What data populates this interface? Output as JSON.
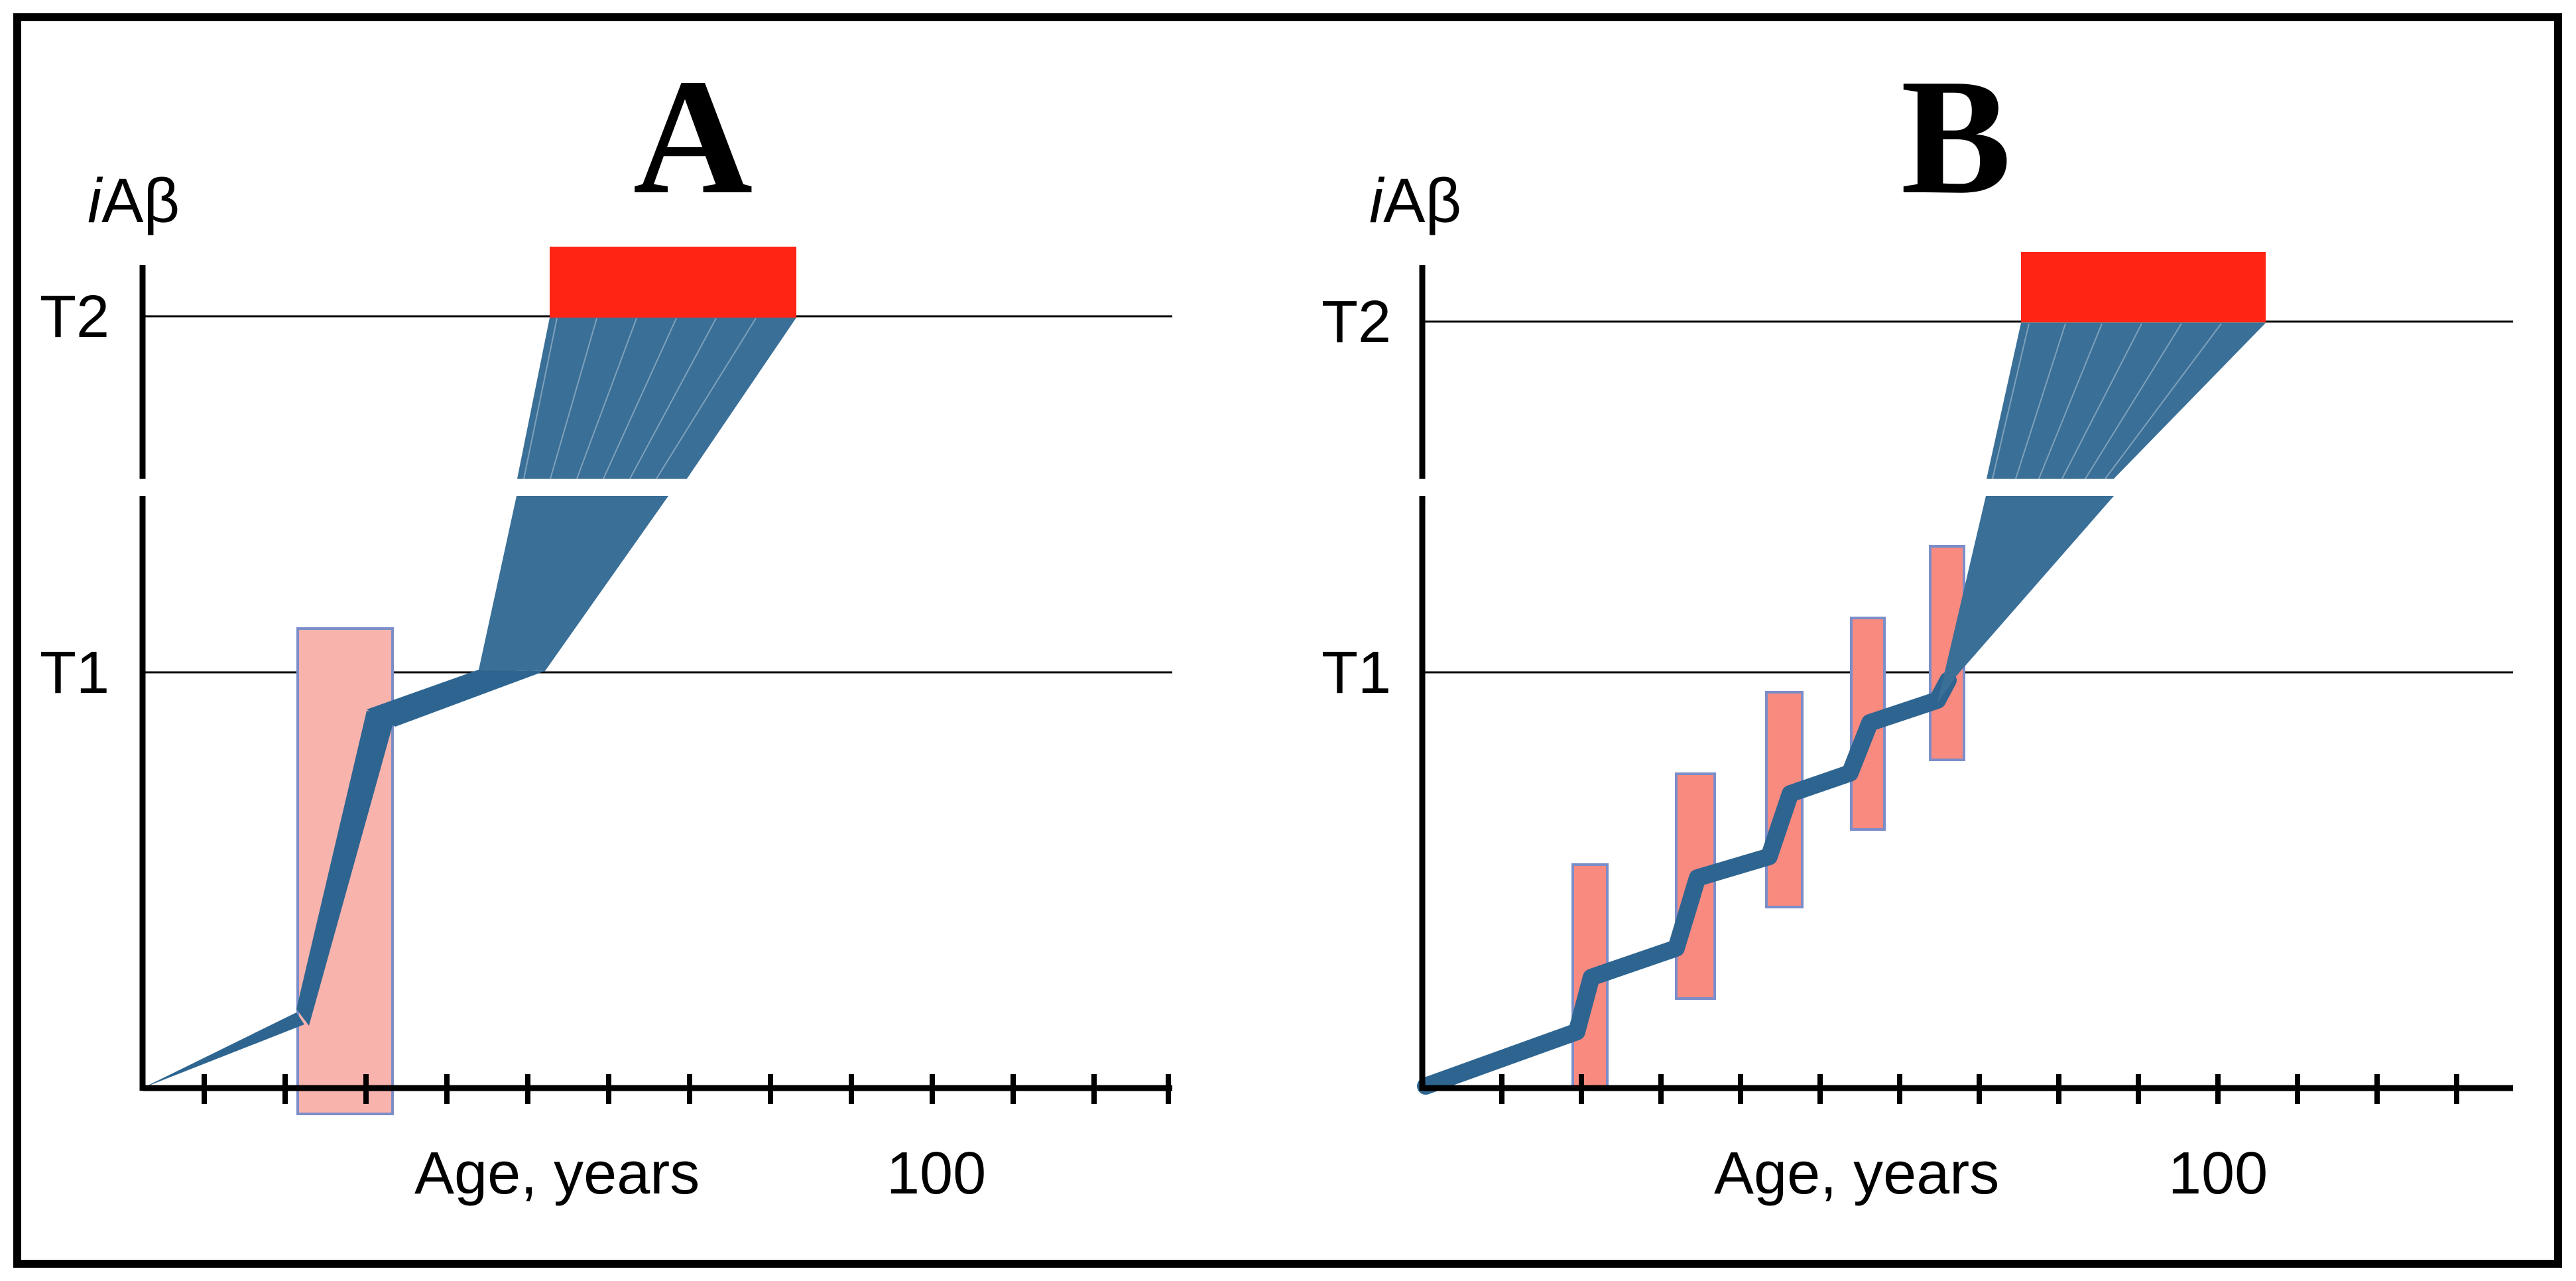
{
  "figure": {
    "panels": [
      {
        "letter": "A",
        "y_label_italic": "i",
        "y_label_rest": "Aβ",
        "x_label": "Age, years",
        "x_tick_label": "100",
        "thresholds": [
          "T1",
          "T2"
        ]
      },
      {
        "letter": "B",
        "y_label_italic": "i",
        "y_label_rest": "Aβ",
        "x_label": "Age, years",
        "x_tick_label": "100",
        "thresholds": [
          "T1",
          "T2"
        ]
      }
    ],
    "colors": {
      "trajectory": "#2e6590",
      "trajectory_fill": "#3a6f97",
      "intervention_box_a": "#f9b3ad",
      "intervention_box_b": "#f98a80",
      "box_border": "#7b8ec9",
      "disease_bar": "#ff2414",
      "axis": "#000000",
      "threshold_line": "#000000"
    }
  }
}
